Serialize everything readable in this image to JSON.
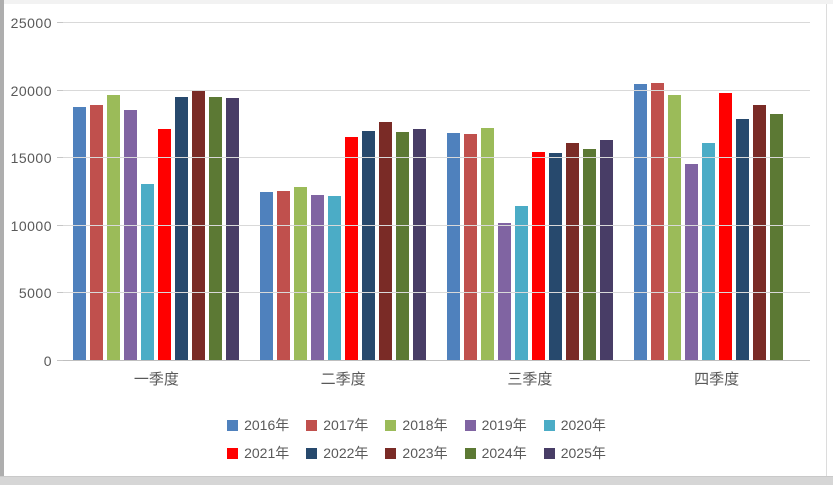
{
  "chart_data": {
    "type": "bar",
    "title": "",
    "xlabel": "",
    "ylabel": "",
    "categories": [
      "一季度",
      "二季度",
      "三季度",
      "四季度"
    ],
    "series": [
      {
        "name": "2016年",
        "color": "#4F81BD",
        "values": [
          18800,
          12500,
          16850,
          20500
        ]
      },
      {
        "name": "2017年",
        "color": "#C0504D",
        "values": [
          18900,
          12600,
          16800,
          20550
        ]
      },
      {
        "name": "2018年",
        "color": "#9BBB59",
        "values": [
          19700,
          12850,
          17200,
          19700
        ]
      },
      {
        "name": "2019年",
        "color": "#8064A2",
        "values": [
          18550,
          12300,
          10200,
          14600
        ]
      },
      {
        "name": "2020年",
        "color": "#4BACC6",
        "values": [
          13100,
          12200,
          11500,
          16100
        ]
      },
      {
        "name": "2021年",
        "color": "#FF0000",
        "values": [
          17150,
          16600,
          15450,
          19800
        ]
      },
      {
        "name": "2022年",
        "color": "#27496D",
        "values": [
          19550,
          17000,
          15400,
          17900
        ]
      },
      {
        "name": "2023年",
        "color": "#7A2B26",
        "values": [
          19950,
          17650,
          16150,
          18900
        ]
      },
      {
        "name": "2024年",
        "color": "#5C7934",
        "values": [
          19500,
          16950,
          15650,
          18250
        ]
      },
      {
        "name": "2025年",
        "color": "#483D66",
        "values": [
          19450,
          17150,
          16350,
          null
        ]
      }
    ],
    "ylim": [
      0,
      25000
    ],
    "yticks": [
      0,
      5000,
      10000,
      15000,
      20000,
      25000
    ],
    "grid": true,
    "legend_position": "bottom",
    "legend_rows": 2
  },
  "colors": {
    "grid_line": "#d9d9d9",
    "axis_line": "#bfbfbf",
    "text": "#595959",
    "background": "#ffffff"
  }
}
